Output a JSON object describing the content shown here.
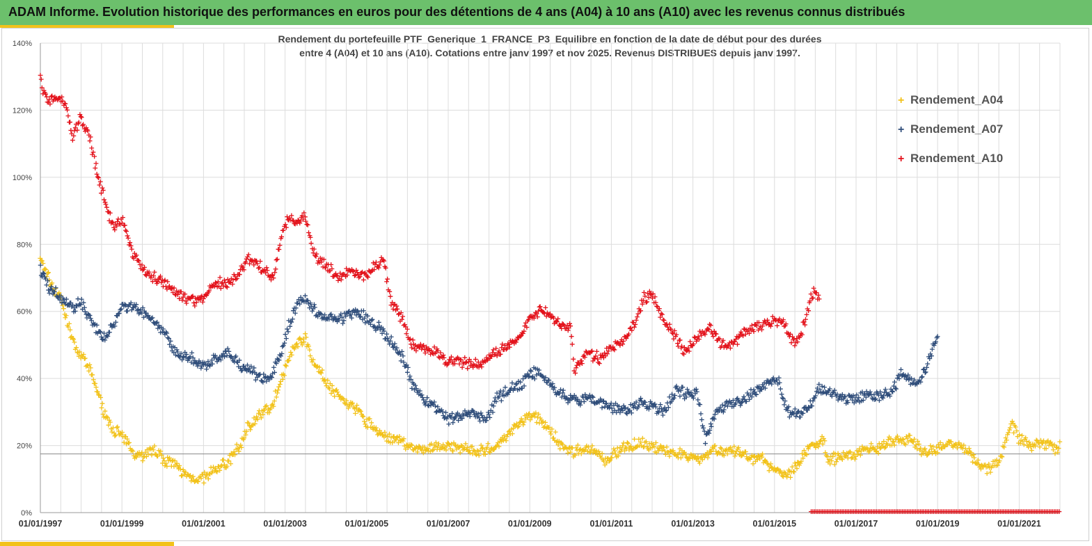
{
  "header": {
    "title": "ADAM Informe. Evolution historique des performances en euros pour des détentions de 4 ans (A04) à 10 ans (A10) avec les revenus connus distribués"
  },
  "chart_data": {
    "type": "scatter",
    "title_line1": "Rendement du portefeuille PTF_Generique_1_FRANCE_P3_Equilibre  en fonction de la date de début pour des durées",
    "title_line2": "entre 4 (A04) et 10 ans (A10). Cotations  entre janv 1997 et nov 2025. Revenus DISTRIBUES depuis janv 1997.",
    "y_ticks": [
      "0%",
      "20%",
      "40%",
      "60%",
      "80%",
      "100%",
      "120%",
      "140%"
    ],
    "ylim": [
      0,
      140
    ],
    "x_ticks": [
      "01/01/1997",
      "01/01/1999",
      "01/01/2001",
      "01/01/2003",
      "01/01/2005",
      "01/01/2007",
      "01/01/2009",
      "01/01/2011",
      "01/01/2013",
      "01/01/2015",
      "01/01/2017",
      "01/01/2019",
      "01/01/2021"
    ],
    "xlim": [
      1997.0,
      2022.0
    ],
    "reference_line": 17.5,
    "marker": "+",
    "series": [
      {
        "name": "Rendement_A04",
        "color": "#f2c21a",
        "anchors": [
          [
            1997.0,
            75
          ],
          [
            1997.1,
            73
          ],
          [
            1997.3,
            67
          ],
          [
            1997.5,
            64
          ],
          [
            1997.7,
            55
          ],
          [
            1997.9,
            48
          ],
          [
            1998.1,
            45
          ],
          [
            1998.3,
            40
          ],
          [
            1998.5,
            32
          ],
          [
            1998.7,
            26
          ],
          [
            1998.9,
            24
          ],
          [
            1999.1,
            21
          ],
          [
            1999.3,
            18
          ],
          [
            1999.5,
            17
          ],
          [
            1999.8,
            19
          ],
          [
            2000.0,
            16
          ],
          [
            2000.3,
            14
          ],
          [
            2000.6,
            11
          ],
          [
            2000.9,
            10
          ],
          [
            2001.1,
            11
          ],
          [
            2001.3,
            13
          ],
          [
            2001.6,
            15
          ],
          [
            2001.9,
            20
          ],
          [
            2002.1,
            26
          ],
          [
            2002.4,
            29
          ],
          [
            2002.7,
            32
          ],
          [
            2002.9,
            40
          ],
          [
            2003.1,
            46
          ],
          [
            2003.3,
            51
          ],
          [
            2003.5,
            52
          ],
          [
            2003.7,
            45
          ],
          [
            2003.9,
            41
          ],
          [
            2004.2,
            36
          ],
          [
            2004.5,
            33
          ],
          [
            2004.8,
            30
          ],
          [
            2005.0,
            27
          ],
          [
            2005.3,
            24
          ],
          [
            2005.6,
            22
          ],
          [
            2005.9,
            21
          ],
          [
            2006.2,
            19
          ],
          [
            2006.5,
            19
          ],
          [
            2006.8,
            20
          ],
          [
            2007.1,
            19
          ],
          [
            2007.4,
            20
          ],
          [
            2007.7,
            18
          ],
          [
            2008.0,
            19
          ],
          [
            2008.3,
            21
          ],
          [
            2008.6,
            25
          ],
          [
            2008.9,
            28
          ],
          [
            2009.1,
            29
          ],
          [
            2009.4,
            26
          ],
          [
            2009.7,
            21
          ],
          [
            2010.0,
            18
          ],
          [
            2010.3,
            19
          ],
          [
            2010.6,
            18
          ],
          [
            2010.9,
            15
          ],
          [
            2011.1,
            18
          ],
          [
            2011.4,
            20
          ],
          [
            2011.7,
            21
          ],
          [
            2012.0,
            20
          ],
          [
            2012.3,
            18
          ],
          [
            2012.6,
            18
          ],
          [
            2012.9,
            17
          ],
          [
            2013.2,
            16
          ],
          [
            2013.5,
            19
          ],
          [
            2013.8,
            18
          ],
          [
            2014.1,
            18
          ],
          [
            2014.4,
            16
          ],
          [
            2014.7,
            16
          ],
          [
            2015.0,
            13
          ],
          [
            2015.3,
            11
          ],
          [
            2015.6,
            15
          ],
          [
            2015.8,
            19
          ],
          [
            2016.0,
            20
          ],
          [
            2016.2,
            22
          ],
          [
            2016.3,
            15
          ],
          [
            2016.6,
            17
          ],
          [
            2016.9,
            17
          ],
          [
            2017.2,
            19
          ],
          [
            2017.5,
            19
          ],
          [
            2017.8,
            21
          ],
          [
            2018.1,
            22
          ],
          [
            2018.4,
            21
          ],
          [
            2018.7,
            18
          ],
          [
            2019.0,
            19
          ],
          [
            2019.3,
            21
          ],
          [
            2019.6,
            20
          ],
          [
            2019.9,
            16
          ],
          [
            2020.2,
            13
          ],
          [
            2020.5,
            15
          ],
          [
            2020.8,
            27
          ],
          [
            2021.0,
            22
          ],
          [
            2021.3,
            20
          ],
          [
            2021.6,
            21
          ],
          [
            2021.9,
            19
          ],
          [
            2022.0,
            20
          ]
        ]
      },
      {
        "name": "Rendement_A07",
        "color": "#2f4d7a",
        "anchors": [
          [
            1997.0,
            72
          ],
          [
            1997.2,
            67
          ],
          [
            1997.5,
            64
          ],
          [
            1997.8,
            61
          ],
          [
            1998.0,
            63
          ],
          [
            1998.2,
            58
          ],
          [
            1998.4,
            54
          ],
          [
            1998.6,
            52
          ],
          [
            1998.8,
            56
          ],
          [
            1999.0,
            62
          ],
          [
            1999.3,
            61
          ],
          [
            1999.6,
            59
          ],
          [
            1999.8,
            57
          ],
          [
            2000.1,
            52
          ],
          [
            2000.4,
            47
          ],
          [
            2000.7,
            46
          ],
          [
            2001.0,
            43
          ],
          [
            2001.3,
            46
          ],
          [
            2001.6,
            48
          ],
          [
            2001.9,
            44
          ],
          [
            2002.1,
            43
          ],
          [
            2002.3,
            41
          ],
          [
            2002.6,
            39
          ],
          [
            2002.9,
            47
          ],
          [
            2003.1,
            56
          ],
          [
            2003.3,
            62
          ],
          [
            2003.5,
            64
          ],
          [
            2003.8,
            59
          ],
          [
            2004.1,
            58
          ],
          [
            2004.4,
            58
          ],
          [
            2004.7,
            60
          ],
          [
            2005.0,
            58
          ],
          [
            2005.3,
            55
          ],
          [
            2005.6,
            51
          ],
          [
            2005.9,
            46
          ],
          [
            2006.1,
            39
          ],
          [
            2006.4,
            34
          ],
          [
            2006.7,
            31
          ],
          [
            2007.0,
            28
          ],
          [
            2007.3,
            29
          ],
          [
            2007.6,
            30
          ],
          [
            2007.9,
            27
          ],
          [
            2008.2,
            34
          ],
          [
            2008.5,
            37
          ],
          [
            2008.8,
            38
          ],
          [
            2009.0,
            42
          ],
          [
            2009.3,
            41
          ],
          [
            2009.6,
            37
          ],
          [
            2009.9,
            34
          ],
          [
            2010.2,
            33
          ],
          [
            2010.5,
            34
          ],
          [
            2010.8,
            32
          ],
          [
            2011.1,
            31
          ],
          [
            2011.4,
            30
          ],
          [
            2011.7,
            33
          ],
          [
            2012.0,
            32
          ],
          [
            2012.3,
            30
          ],
          [
            2012.6,
            37
          ],
          [
            2012.9,
            35
          ],
          [
            2013.1,
            36
          ],
          [
            2013.3,
            22
          ],
          [
            2013.6,
            31
          ],
          [
            2013.9,
            32
          ],
          [
            2014.2,
            33
          ],
          [
            2014.5,
            36
          ],
          [
            2014.8,
            38
          ],
          [
            2015.1,
            40
          ],
          [
            2015.3,
            30
          ],
          [
            2015.6,
            29
          ],
          [
            2015.9,
            32
          ],
          [
            2016.1,
            37
          ],
          [
            2016.4,
            36
          ],
          [
            2016.7,
            34
          ],
          [
            2017.0,
            34
          ],
          [
            2017.3,
            35
          ],
          [
            2017.6,
            35
          ],
          [
            2017.9,
            36
          ],
          [
            2018.1,
            42
          ],
          [
            2018.4,
            39
          ],
          [
            2018.6,
            40
          ],
          [
            2018.8,
            46
          ],
          [
            2019.0,
            52
          ]
        ]
      },
      {
        "name": "Rendement_A10",
        "color": "#e3121b",
        "anchors": [
          [
            1997.0,
            129
          ],
          [
            1997.2,
            122
          ],
          [
            1997.4,
            124
          ],
          [
            1997.6,
            122
          ],
          [
            1997.8,
            112
          ],
          [
            1998.0,
            118
          ],
          [
            1998.2,
            112
          ],
          [
            1998.4,
            101
          ],
          [
            1998.6,
            92
          ],
          [
            1998.8,
            85
          ],
          [
            1999.0,
            88
          ],
          [
            1999.2,
            79
          ],
          [
            1999.5,
            73
          ],
          [
            1999.8,
            70
          ],
          [
            2000.1,
            68
          ],
          [
            2000.4,
            65
          ],
          [
            2000.7,
            63
          ],
          [
            2001.0,
            64
          ],
          [
            2001.3,
            69
          ],
          [
            2001.6,
            68
          ],
          [
            2001.9,
            72
          ],
          [
            2002.1,
            76
          ],
          [
            2002.4,
            73
          ],
          [
            2002.7,
            70
          ],
          [
            2002.9,
            82
          ],
          [
            2003.1,
            88
          ],
          [
            2003.3,
            86
          ],
          [
            2003.5,
            89
          ],
          [
            2003.7,
            77
          ],
          [
            2004.0,
            74
          ],
          [
            2004.3,
            70
          ],
          [
            2004.6,
            72
          ],
          [
            2004.9,
            70
          ],
          [
            2005.1,
            72
          ],
          [
            2005.4,
            76
          ],
          [
            2005.6,
            63
          ],
          [
            2005.9,
            57
          ],
          [
            2006.1,
            50
          ],
          [
            2006.4,
            49
          ],
          [
            2006.7,
            48
          ],
          [
            2007.0,
            45
          ],
          [
            2007.3,
            45
          ],
          [
            2007.6,
            44
          ],
          [
            2007.9,
            45
          ],
          [
            2008.2,
            48
          ],
          [
            2008.5,
            50
          ],
          [
            2008.8,
            54
          ],
          [
            2009.0,
            58
          ],
          [
            2009.3,
            61
          ],
          [
            2009.6,
            57
          ],
          [
            2009.9,
            55
          ],
          [
            2010.0,
            55
          ],
          [
            2010.1,
            42
          ],
          [
            2010.4,
            48
          ],
          [
            2010.7,
            46
          ],
          [
            2011.0,
            49
          ],
          [
            2011.3,
            51
          ],
          [
            2011.6,
            57
          ],
          [
            2011.8,
            64
          ],
          [
            2012.0,
            65
          ],
          [
            2012.3,
            57
          ],
          [
            2012.6,
            52
          ],
          [
            2012.8,
            48
          ],
          [
            2013.1,
            52
          ],
          [
            2013.4,
            55
          ],
          [
            2013.7,
            50
          ],
          [
            2014.0,
            50
          ],
          [
            2014.3,
            55
          ],
          [
            2014.6,
            55
          ],
          [
            2014.9,
            57
          ],
          [
            2015.2,
            57
          ],
          [
            2015.5,
            50
          ],
          [
            2015.7,
            55
          ],
          [
            2015.9,
            65
          ],
          [
            2016.0,
            66
          ],
          [
            2016.1,
            64
          ]
        ]
      },
      {
        "name": "Rendement_A10",
        "color": "#e3121b",
        "constant": 0.3,
        "range": [
          2015.9,
          2022.0
        ]
      }
    ]
  },
  "legend": {
    "items": [
      {
        "label": "Rendement_A04",
        "color": "#f2c21a",
        "marker": "+"
      },
      {
        "label": "Rendement_A07",
        "color": "#2f4d7a",
        "marker": "+"
      },
      {
        "label": "Rendement_A10",
        "color": "#e3121b",
        "marker": "+"
      }
    ]
  }
}
